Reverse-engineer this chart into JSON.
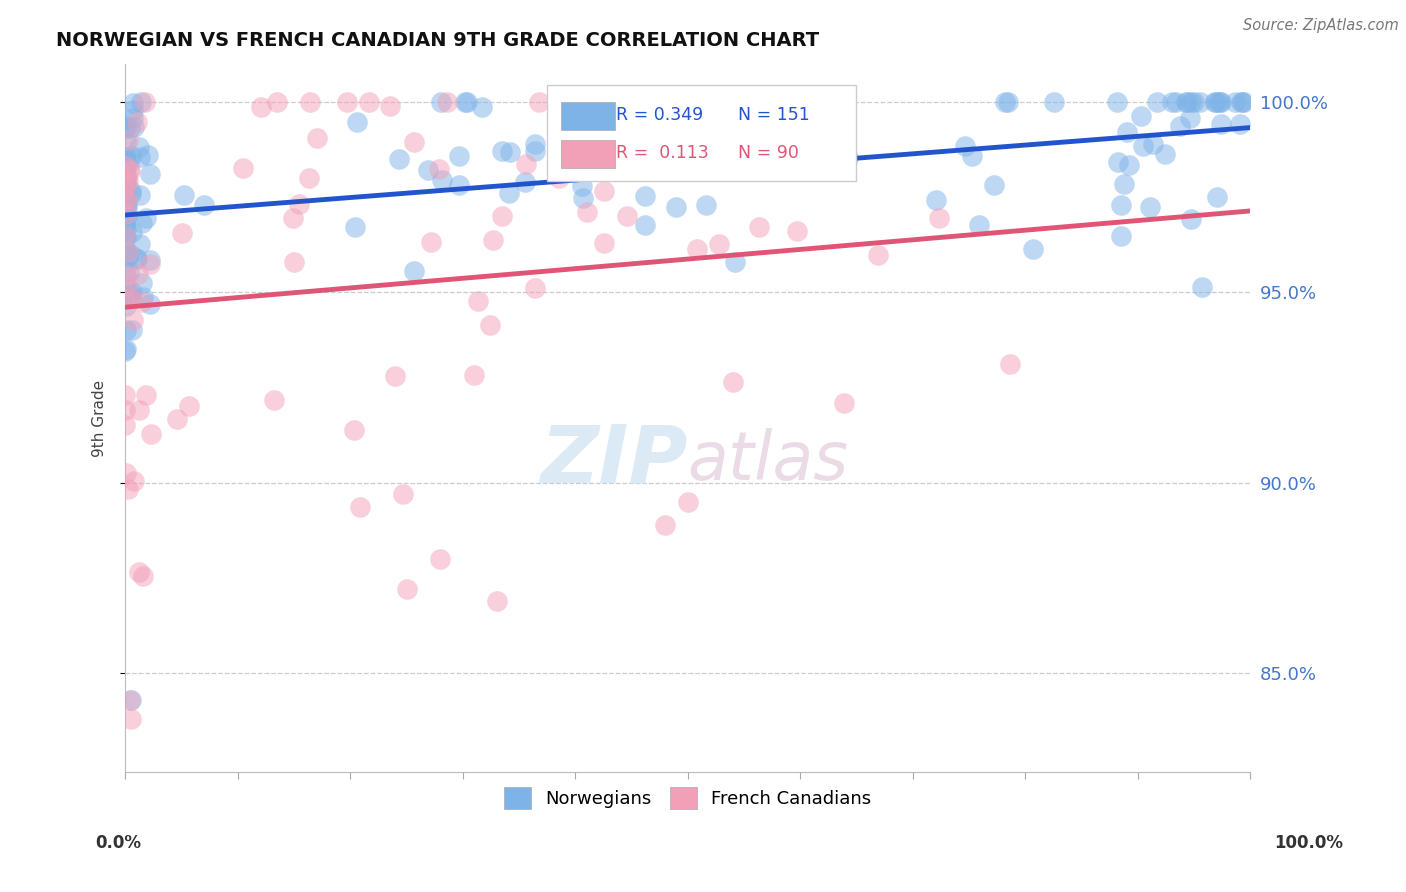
{
  "title": "NORWEGIAN VS FRENCH CANADIAN 9TH GRADE CORRELATION CHART",
  "source": "Source: ZipAtlas.com",
  "ylabel": "9th Grade",
  "r_norwegian": 0.349,
  "n_norwegian": 151,
  "r_french": 0.113,
  "n_french": 90,
  "color_norwegian": "#7EB3E8",
  "color_french": "#F2A0B8",
  "color_line_norwegian": "#2255CC",
  "color_line_french": "#E05575",
  "watermark_zip": "ZIP",
  "watermark_atlas": "atlas",
  "ylim_min": 0.824,
  "ylim_max": 1.01,
  "yticks": [
    0.85,
    0.9,
    0.95,
    1.0
  ],
  "ytick_labels": [
    "85.0%",
    "90.0%",
    "95.0%",
    "100.0%"
  ],
  "background_color": "#FFFFFF",
  "grid_color": "#CCCCCC"
}
